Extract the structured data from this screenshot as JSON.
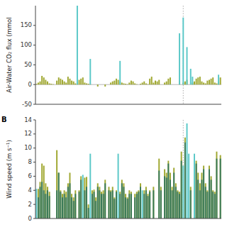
{
  "chart_data": [
    {
      "type": "bar",
      "y_label": "Air-Water CO₂ flux (mmol",
      "categories": [
        null,
        null,
        null,
        null,
        null,
        null,
        null,
        null,
        null,
        null,
        null,
        null,
        null,
        null,
        null,
        null,
        null,
        null,
        null,
        null,
        null,
        null,
        null,
        null,
        null,
        null,
        null,
        null,
        null,
        null,
        null,
        null,
        null,
        null,
        null,
        null,
        null,
        null,
        null,
        null,
        null,
        null,
        null,
        null,
        null,
        null,
        null,
        null,
        null,
        null,
        null,
        null,
        null,
        null,
        null,
        null,
        null,
        null,
        null,
        null,
        null,
        null,
        null,
        null,
        null,
        null,
        null,
        null,
        null,
        null,
        null,
        null,
        null,
        null,
        null,
        null,
        null,
        null,
        null,
        null,
        null,
        null,
        null,
        null,
        null,
        null,
        null,
        null,
        null,
        null,
        null,
        null,
        null,
        null,
        null,
        null,
        null,
        null,
        null,
        null
      ],
      "series": [
        {
          "color": "#A0A832",
          "values": [
            2,
            5,
            8,
            22,
            18,
            12,
            8,
            3,
            2,
            1,
            0,
            10,
            18,
            15,
            12,
            8,
            5,
            20,
            15,
            10,
            8,
            3,
            5,
            12,
            15,
            18,
            5,
            3,
            2,
            1,
            0,
            0,
            0,
            -5,
            0,
            0,
            0,
            -5,
            0,
            0,
            5,
            8,
            10,
            15,
            12,
            8,
            5,
            3,
            2,
            1,
            5,
            10,
            8,
            3,
            1,
            0,
            2,
            5,
            8,
            3,
            1,
            15,
            20,
            5,
            10,
            8,
            12,
            0,
            0,
            5,
            8,
            15,
            18,
            0,
            0,
            0,
            0,
            10,
            0,
            5,
            8,
            12,
            0,
            0,
            5,
            8,
            15,
            18,
            20,
            8,
            5,
            3,
            10,
            12,
            15,
            18,
            5,
            3,
            8,
            18
          ]
        },
        {
          "color": "#5BC8C8",
          "values": [
            0,
            0,
            0,
            0,
            0,
            0,
            0,
            0,
            0,
            0,
            0,
            0,
            0,
            0,
            0,
            0,
            0,
            0,
            0,
            0,
            0,
            0,
            200,
            0,
            0,
            0,
            0,
            0,
            0,
            65,
            0,
            0,
            0,
            0,
            0,
            0,
            0,
            0,
            0,
            0,
            0,
            0,
            0,
            0,
            0,
            60,
            0,
            0,
            0,
            0,
            0,
            0,
            0,
            0,
            0,
            0,
            0,
            0,
            0,
            0,
            0,
            0,
            0,
            0,
            0,
            0,
            0,
            0,
            0,
            0,
            0,
            0,
            1,
            0,
            0,
            0,
            0,
            130,
            0,
            170,
            0,
            95,
            0,
            40,
            20,
            0,
            0,
            0,
            0,
            0,
            0,
            0,
            0,
            0,
            0,
            0,
            0,
            0,
            25,
            0
          ]
        }
      ],
      "ylim": [
        -50,
        200
      ],
      "yticks": [
        -50,
        0,
        50,
        100,
        150
      ],
      "vline": 79,
      "tick_labels": "y"
    },
    {
      "type": "bar",
      "y_label": "Wind speed (m s⁻¹)",
      "annotations": [
        "B"
      ],
      "categories": [
        null,
        null,
        null,
        null,
        null,
        null,
        null,
        null,
        null,
        null,
        null,
        null,
        null,
        null,
        null,
        null,
        null,
        null,
        null,
        null,
        null,
        null,
        null,
        null,
        null,
        null,
        null,
        null,
        null,
        null,
        null,
        null,
        null,
        null,
        null,
        null,
        null,
        null,
        null,
        null,
        null,
        null,
        null,
        null,
        null,
        null,
        null,
        null,
        null,
        null,
        null,
        null,
        null,
        null,
        null,
        null,
        null,
        null,
        null,
        null,
        null,
        null,
        null,
        null,
        null,
        null,
        null,
        null,
        null,
        null,
        null,
        null,
        null,
        null,
        null,
        null,
        null,
        null,
        null,
        null,
        null,
        null,
        null,
        null,
        null,
        null,
        null,
        null,
        null,
        null,
        null,
        null,
        null,
        null,
        null,
        null,
        null,
        null,
        null,
        null
      ],
      "series": [
        {
          "color": "#A0A832",
          "values": [
            0,
            4.2,
            5.2,
            7.8,
            7.5,
            5,
            4.5,
            3.8,
            0,
            0,
            0,
            9.7,
            6.5,
            4,
            3.5,
            4,
            3.8,
            5,
            6.5,
            3.5,
            3,
            4,
            0,
            4,
            6,
            0,
            5.8,
            5.9,
            2,
            0,
            4,
            4.1,
            3,
            5,
            4.5,
            3.8,
            4,
            5.5,
            0,
            4.5,
            4,
            4.5,
            3,
            4,
            0,
            3.8,
            5.5,
            5,
            3.5,
            3,
            4,
            3.8,
            0,
            3.5,
            3.8,
            4,
            5,
            0,
            4,
            4.5,
            3.5,
            4,
            0,
            4.5,
            0,
            0,
            8.5,
            4.5,
            0,
            7,
            6.5,
            8.2,
            6.5,
            4.5,
            7.2,
            5,
            4,
            3.8,
            9.5,
            0,
            11.5,
            0,
            0,
            4.5,
            0,
            0,
            8.2,
            6.5,
            5,
            6.5,
            7.5,
            5,
            4,
            7.5,
            6,
            4,
            3.8,
            9.5,
            0,
            9
          ]
        },
        {
          "color": "#3A7A5A",
          "values": [
            0,
            3,
            4.5,
            5.2,
            4,
            3.5,
            4,
            3.2,
            0,
            0,
            0,
            4,
            6.5,
            3.8,
            3,
            3.5,
            3,
            4.5,
            5,
            3,
            2.5,
            3.5,
            0,
            3.8,
            5.5,
            0,
            4,
            4.5,
            1.5,
            0,
            3.5,
            3.8,
            2.5,
            4.5,
            4,
            3.5,
            3.5,
            5,
            0,
            4,
            3.8,
            4,
            2.8,
            3.8,
            0,
            3.5,
            5,
            4.5,
            3,
            2.8,
            3.5,
            3.5,
            0,
            3,
            3.5,
            3.8,
            4.5,
            0,
            3.5,
            4,
            3.2,
            3.8,
            0,
            4,
            0,
            0,
            6.8,
            4,
            0,
            6,
            5.8,
            7.8,
            5.5,
            4,
            6.5,
            4.5,
            3.8,
            3.5,
            8.2,
            0,
            10.8,
            0,
            0,
            4,
            0,
            0,
            7.8,
            5.5,
            4,
            5.5,
            7,
            4.5,
            3.8,
            7,
            5.5,
            3.8,
            3.5,
            8.5,
            0,
            8.5
          ]
        },
        {
          "color": "#5BC8C8",
          "values": [
            4.2,
            0,
            0,
            0,
            0,
            0,
            0,
            0,
            0,
            0,
            0,
            0,
            0,
            0,
            0,
            0,
            0,
            0,
            0,
            0,
            0,
            0,
            0,
            0,
            0,
            6.2,
            0,
            0,
            0,
            9.2,
            0,
            0,
            0,
            0,
            0,
            0,
            0,
            0,
            0,
            0,
            0,
            0,
            0,
            0,
            9.2,
            0,
            0,
            0,
            0,
            0,
            0,
            0,
            0,
            0,
            0,
            0,
            0,
            4.0,
            0,
            0,
            0,
            0,
            0,
            0,
            0,
            0,
            0,
            0,
            0,
            0,
            0,
            0,
            0,
            0,
            0,
            0,
            0,
            0,
            0,
            7.5,
            0,
            13.5,
            9.2,
            0,
            0,
            9.2,
            0,
            0,
            0,
            0,
            0,
            0,
            0,
            0,
            0,
            0,
            0,
            0,
            0,
            0
          ]
        }
      ],
      "ylim": [
        0,
        14
      ],
      "yticks": [
        0,
        2,
        4,
        6,
        8,
        10,
        12,
        14
      ],
      "vline": 79,
      "tick_labels": "y"
    }
  ]
}
